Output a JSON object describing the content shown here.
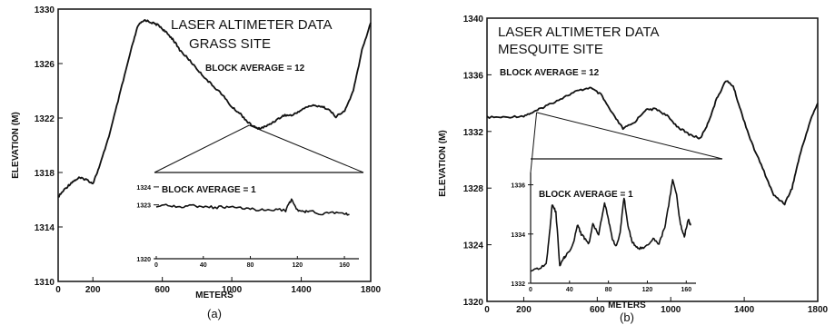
{
  "chart_data": [
    {
      "type": "line",
      "panel_label": "(a)",
      "title_line1": "LASER ALTIMETER DATA",
      "title_line2": "GRASS SITE",
      "xlabel": "METERS",
      "ylabel": "ELEVATION (M)",
      "xlim": [
        0,
        1800
      ],
      "ylim": [
        1310,
        1330
      ],
      "xticks": [
        "0",
        "200",
        "600",
        "1000",
        "1400",
        "1800"
      ],
      "yticks": [
        "1310",
        "1314",
        "1318",
        "1322",
        "1326",
        "1330"
      ],
      "annotation_main": "BLOCK AVERAGE = 12",
      "series": [
        {
          "x": [
            0,
            40,
            80,
            120,
            160,
            200,
            240,
            300,
            360,
            420,
            460,
            500,
            540,
            580,
            620,
            660,
            700,
            760,
            820,
            880,
            940,
            1000,
            1050,
            1100,
            1150,
            1200,
            1250,
            1300,
            1350,
            1400,
            1450,
            1500,
            1550,
            1600,
            1650,
            1700,
            1750,
            1800
          ],
          "y": [
            1316.2,
            1316.8,
            1317.3,
            1317.6,
            1317.5,
            1317.2,
            1318.5,
            1321.0,
            1324.0,
            1327.0,
            1328.8,
            1329.2,
            1329.0,
            1328.8,
            1328.3,
            1327.8,
            1327.0,
            1326.2,
            1325.3,
            1324.5,
            1323.8,
            1322.8,
            1322.3,
            1321.6,
            1321.2,
            1321.4,
            1321.8,
            1322.2,
            1322.2,
            1322.6,
            1322.9,
            1322.9,
            1322.7,
            1322.1,
            1322.5,
            1324.0,
            1327.0,
            1329.0
          ]
        }
      ],
      "inset": {
        "annotation": "BLOCK AVERAGE = 1",
        "xlim": [
          0,
          170
        ],
        "ylim": [
          1320,
          1324.5
        ],
        "xticks": [
          "0",
          "40",
          "80",
          "120",
          "160"
        ],
        "yticks": [
          "1320",
          "1323",
          "1324"
        ],
        "zoom_from_x": [
          1050,
          1150
        ],
        "series": [
          {
            "x": [
              0,
              10,
              20,
              30,
              40,
              50,
              60,
              70,
              80,
              90,
              100,
              110,
              115,
              120,
              125,
              130,
              140,
              150,
              160,
              165
            ],
            "y": [
              1322.9,
              1323.0,
              1322.9,
              1322.95,
              1322.9,
              1322.85,
              1322.9,
              1322.8,
              1322.8,
              1322.7,
              1322.75,
              1322.7,
              1323.3,
              1322.7,
              1322.6,
              1322.7,
              1322.5,
              1322.6,
              1322.5,
              1322.5
            ]
          }
        ]
      }
    },
    {
      "type": "line",
      "panel_label": "(b)",
      "title_line1": "LASER ALTIMETER DATA",
      "title_line2": "MESQUITE SITE",
      "xlabel": "METERS",
      "ylabel": "ELEVATION (M)",
      "xlim": [
        0,
        1800
      ],
      "ylim": [
        1320,
        1340
      ],
      "xticks": [
        "0",
        "200",
        "600",
        "1000",
        "1400",
        "1800"
      ],
      "yticks": [
        "1320",
        "1324",
        "1328",
        "1332",
        "1336",
        "1340"
      ],
      "annotation_main": "BLOCK AVERAGE = 12",
      "series": [
        {
          "x": [
            0,
            100,
            200,
            260,
            320,
            400,
            480,
            560,
            620,
            680,
            740,
            800,
            860,
            920,
            980,
            1040,
            1100,
            1160,
            1200,
            1250,
            1300,
            1340,
            1380,
            1440,
            1500,
            1560,
            1620,
            1660,
            1700,
            1760,
            1800
          ],
          "y": [
            1333.0,
            1333.0,
            1333.1,
            1333.4,
            1333.8,
            1334.3,
            1334.8,
            1335.1,
            1334.6,
            1333.3,
            1332.2,
            1332.6,
            1333.5,
            1333.6,
            1333.1,
            1332.3,
            1331.8,
            1331.5,
            1332.5,
            1334.3,
            1335.6,
            1335.2,
            1333.5,
            1331.2,
            1329.4,
            1327.5,
            1326.9,
            1328.0,
            1330.2,
            1332.8,
            1334.0
          ]
        }
      ],
      "inset": {
        "annotation": "BLOCK AVERAGE = 1",
        "xlim": [
          0,
          170
        ],
        "ylim": [
          1332,
          1336.5
        ],
        "xticks": [
          "0",
          "40",
          "80",
          "120",
          "160"
        ],
        "yticks": [
          "1332",
          "1334",
          "1336"
        ],
        "zoom_from_x": [
          270,
          1290
        ],
        "series": [
          {
            "x": [
              0,
              8,
              16,
              20,
              22,
              26,
              30,
              34,
              36,
              44,
              48,
              52,
              56,
              60,
              64,
              70,
              76,
              80,
              84,
              88,
              92,
              96,
              100,
              104,
              108,
              112,
              118,
              126,
              132,
              138,
              142,
              146,
              150,
              154,
              158,
              162,
              165
            ],
            "y": [
              1332.5,
              1332.6,
              1332.8,
              1334.2,
              1335.2,
              1334.9,
              1332.7,
              1333.0,
              1333.1,
              1333.6,
              1334.4,
              1334.0,
              1333.8,
              1333.6,
              1334.4,
              1334.0,
              1335.3,
              1334.6,
              1333.8,
              1333.5,
              1334.0,
              1335.5,
              1334.4,
              1333.7,
              1333.5,
              1333.4,
              1333.5,
              1333.8,
              1333.6,
              1334.3,
              1335.2,
              1336.2,
              1335.6,
              1334.4,
              1333.9,
              1334.6,
              1334.3
            ]
          }
        ]
      }
    }
  ]
}
